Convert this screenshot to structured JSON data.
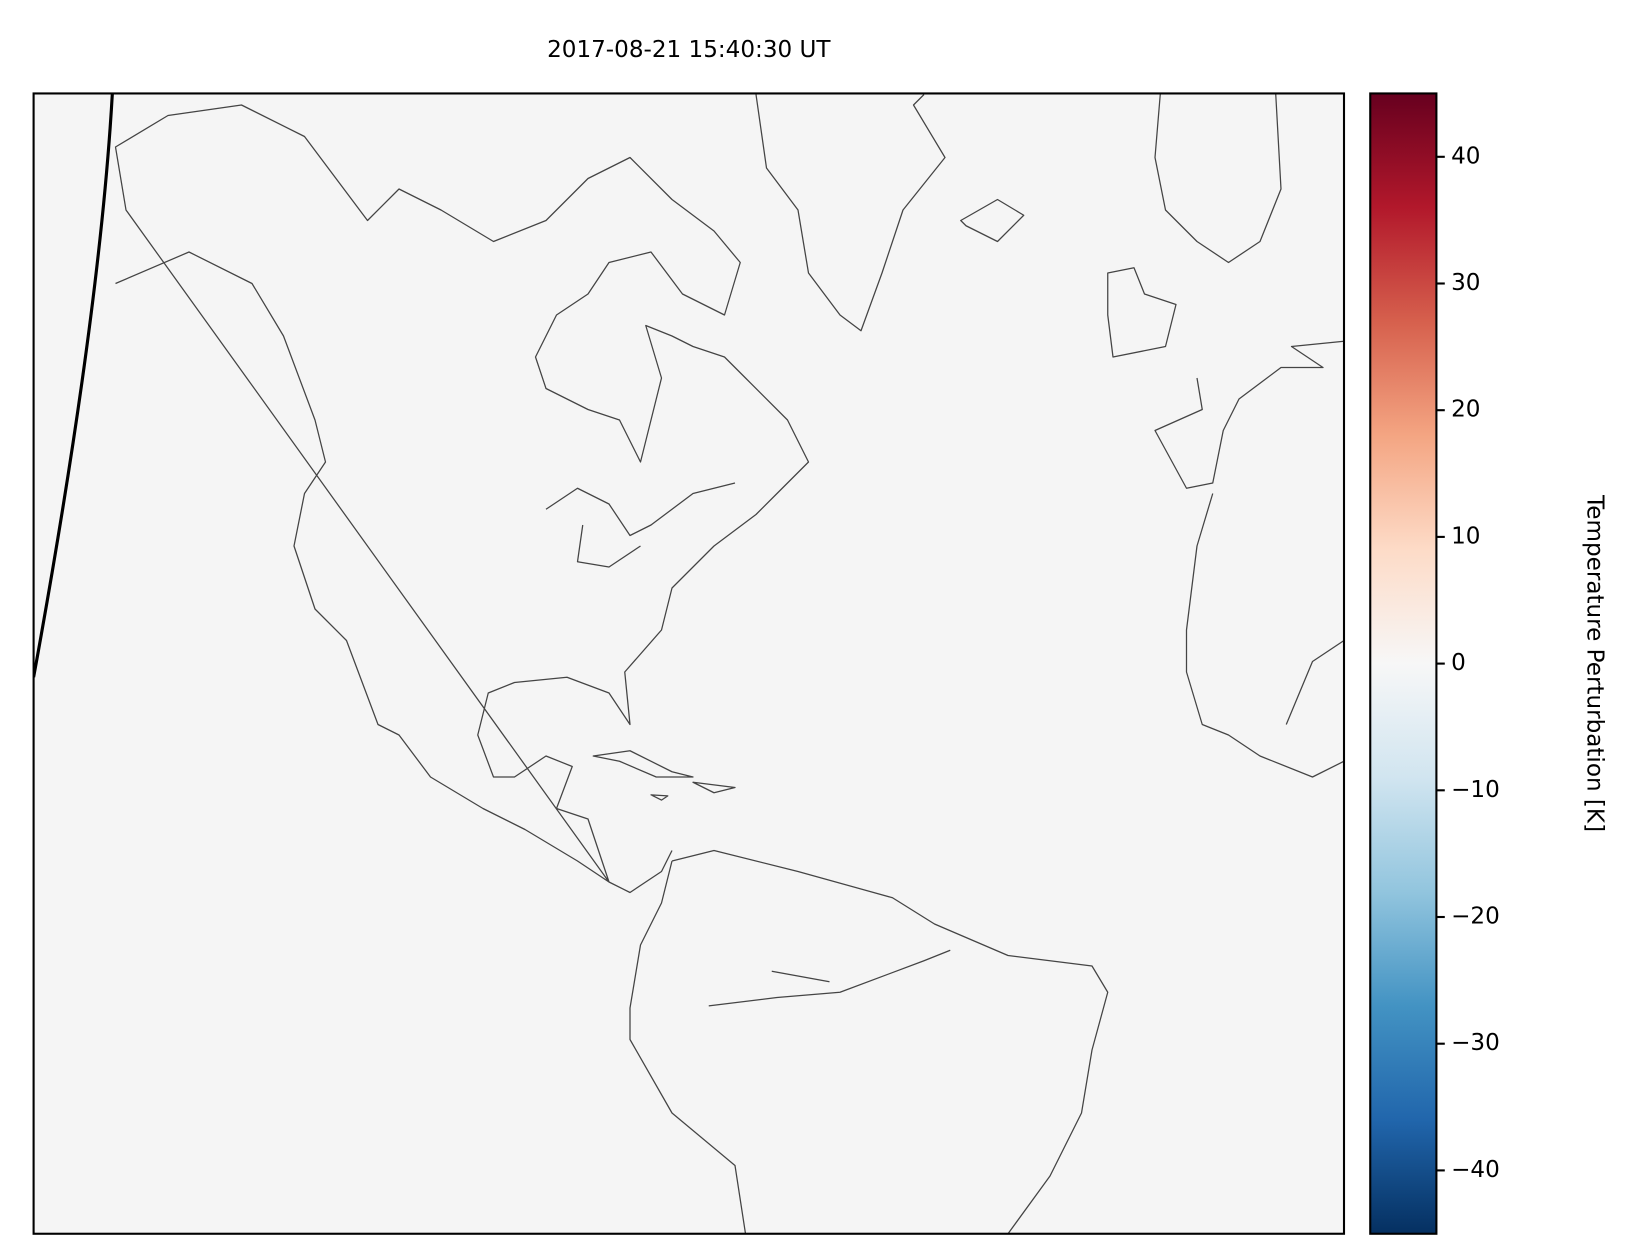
{
  "map": {
    "title": "2017-08-21 15:40:30 UT",
    "colorbar": {
      "label": "Temperature Perturbation [K]",
      "lim": [
        -45,
        45
      ],
      "ticks": [
        {
          "value": -40,
          "label": "−40"
        },
        {
          "value": -30,
          "label": "−30"
        },
        {
          "value": -20,
          "label": "−20"
        },
        {
          "value": -10,
          "label": "−10"
        },
        0,
        10,
        20,
        30,
        40
      ],
      "colors": [
        "#053061",
        "#2166ac",
        "#4393c3",
        "#92c5de",
        "#d1e5f0",
        "#f7f7f7",
        "#fddbc7",
        "#f4a582",
        "#d6604d",
        "#b2182b",
        "#67001f"
      ]
    }
  }
}
